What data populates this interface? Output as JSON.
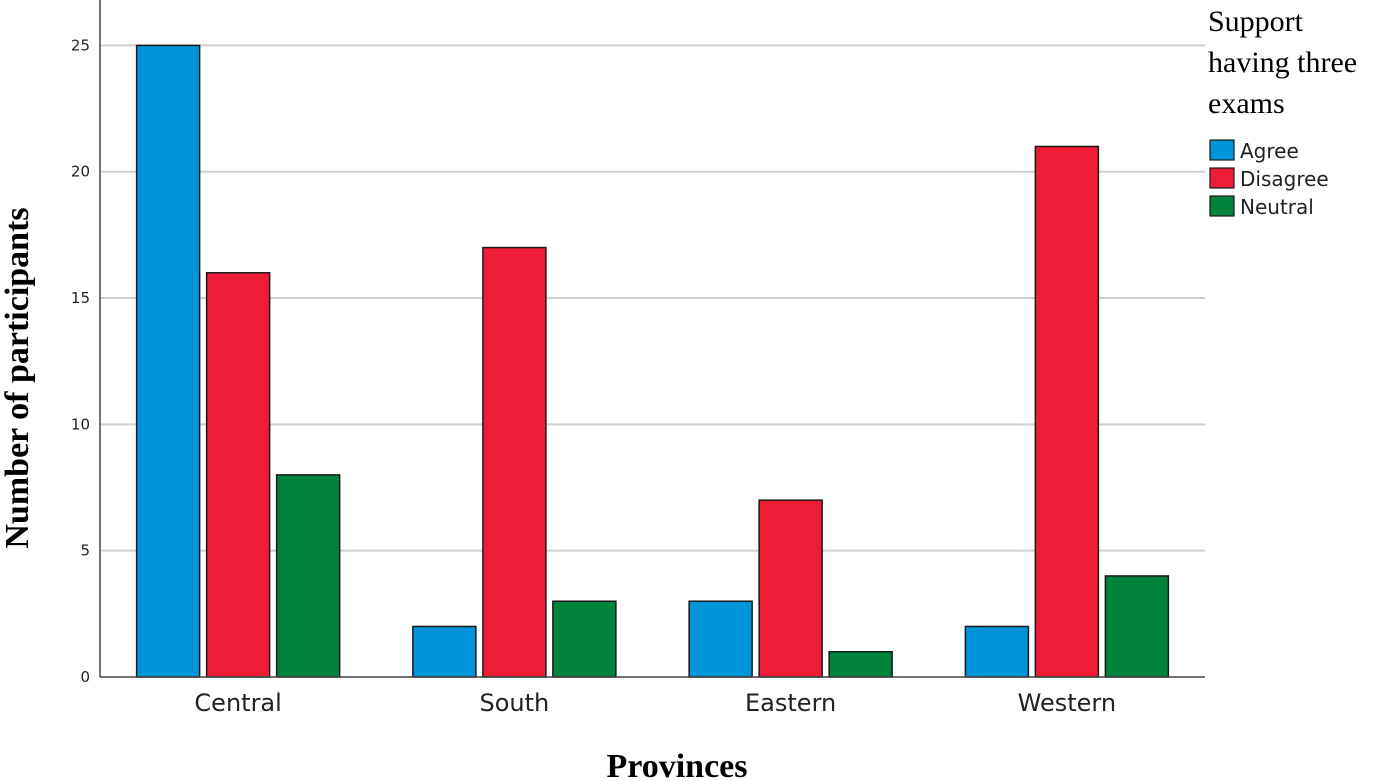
{
  "chart_data": {
    "type": "bar",
    "xlabel": "Provinces",
    "ylabel": "Number of participants",
    "categories": [
      "Central",
      "South",
      "Eastern",
      "Western"
    ],
    "ylim": [
      0,
      26.6
    ],
    "yticks": [
      0,
      5,
      10,
      15,
      20,
      25
    ],
    "grid": true,
    "legend": {
      "title_lines": [
        "Support",
        "having three",
        "exams"
      ],
      "placement": "top-right"
    },
    "series": [
      {
        "name": "Agree",
        "color": "#0095da",
        "values": [
          25,
          2,
          3,
          2
        ]
      },
      {
        "name": "Disagree",
        "color": "#ee1c34",
        "values": [
          16,
          17,
          7,
          21
        ]
      },
      {
        "name": "Neutral",
        "color": "#00843d",
        "values": [
          8,
          3,
          1,
          4
        ]
      }
    ]
  }
}
